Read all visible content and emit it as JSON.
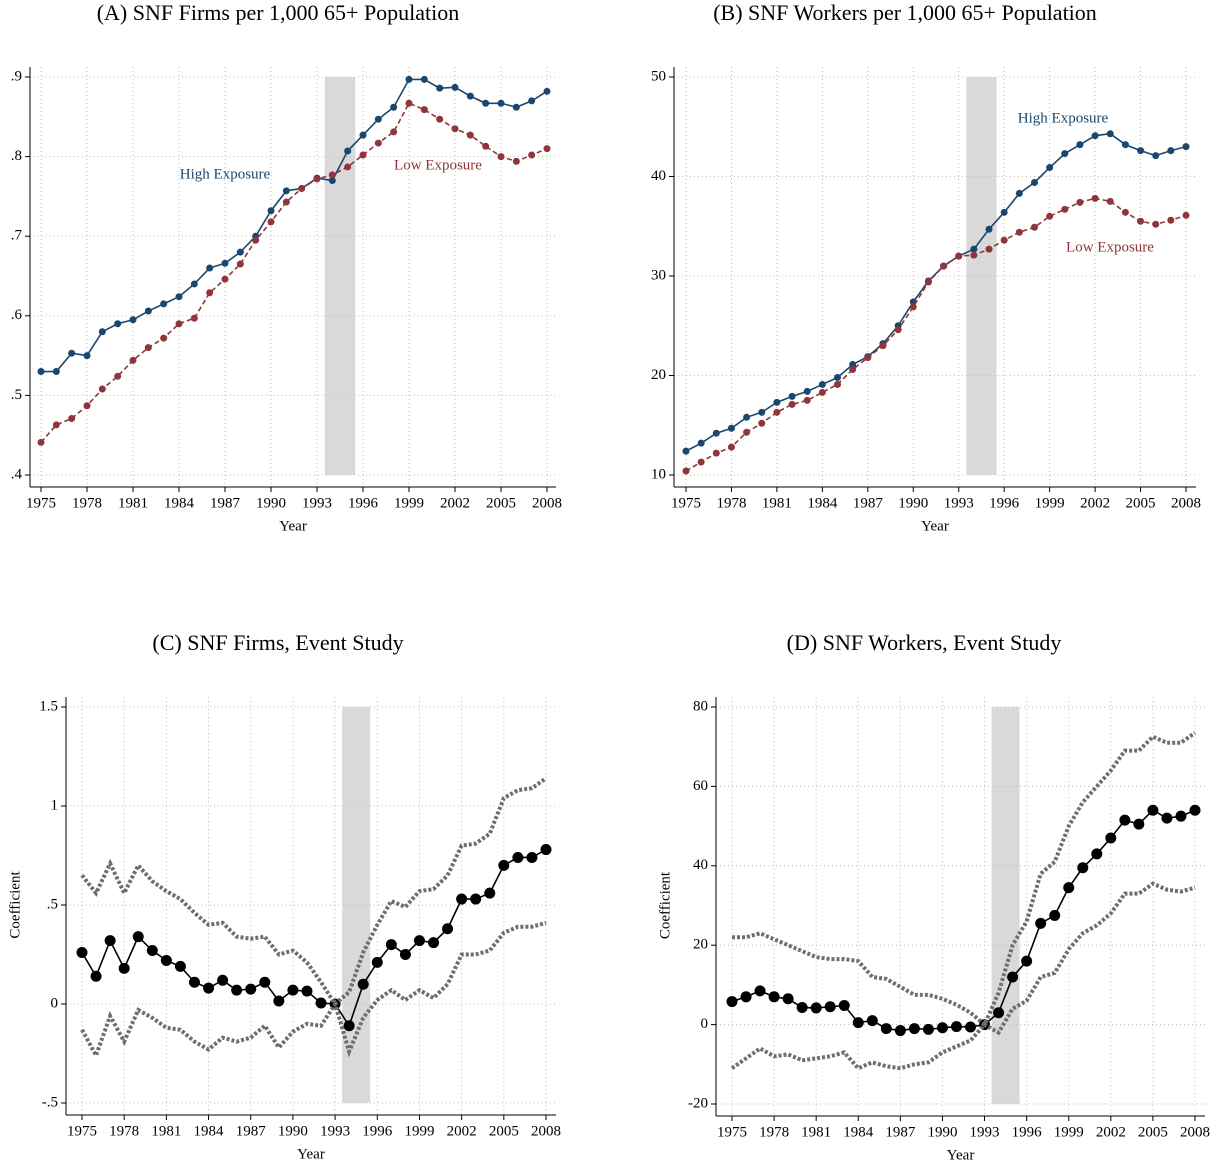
{
  "chart_data": [
    {
      "type": "line",
      "title": "(A)  SNF Firms per 1,000 65+ Population",
      "x_label": "Year",
      "x": [
        1975,
        1976,
        1977,
        1978,
        1979,
        1980,
        1981,
        1982,
        1983,
        1984,
        1985,
        1986,
        1987,
        1988,
        1989,
        1990,
        1991,
        1992,
        1993,
        1994,
        1995,
        1996,
        1997,
        1998,
        1999,
        2000,
        2001,
        2002,
        2003,
        2004,
        2005,
        2006,
        2007,
        2008
      ],
      "series": [
        {
          "name": "High Exposure",
          "color": "#1a476f",
          "dash": false,
          "marker": true,
          "values": [
            0.53,
            0.53,
            0.553,
            0.55,
            0.58,
            0.59,
            0.595,
            0.606,
            0.615,
            0.624,
            0.64,
            0.66,
            0.666,
            0.68,
            0.7,
            0.732,
            0.757,
            0.76,
            0.773,
            0.77,
            0.807,
            0.827,
            0.847,
            0.862,
            0.897,
            0.897,
            0.886,
            0.887,
            0.876,
            0.867,
            0.867,
            0.862,
            0.87,
            0.882
          ]
        },
        {
          "name": "Low Exposure",
          "color": "#90353b",
          "dash": true,
          "marker": true,
          "values": [
            0.441,
            0.463,
            0.471,
            0.487,
            0.508,
            0.524,
            0.544,
            0.56,
            0.572,
            0.59,
            0.597,
            0.629,
            0.646,
            0.665,
            0.695,
            0.718,
            0.743,
            0.76,
            0.772,
            0.777,
            0.787,
            0.802,
            0.817,
            0.831,
            0.867,
            0.859,
            0.847,
            0.835,
            0.827,
            0.813,
            0.8,
            0.794,
            0.802,
            0.81
          ]
        }
      ],
      "xlim": [
        1975,
        2008
      ],
      "xticks": [
        1975,
        1978,
        1981,
        1984,
        1987,
        1990,
        1993,
        1996,
        1999,
        2002,
        2005,
        2008
      ],
      "ylim": [
        0.4,
        0.9
      ],
      "yticks": [
        {
          "value": 0.4,
          "label": ".4"
        },
        {
          "value": 0.5,
          "label": ".5"
        },
        {
          "value": 0.6,
          "label": ".6"
        },
        {
          "value": 0.7,
          "label": ".7"
        },
        {
          "value": 0.8,
          "label": ".8"
        },
        {
          "value": 0.9,
          "label": ".9"
        }
      ],
      "shade": [
        1993.5,
        1995.5
      ],
      "shade_color": "#d9d9d9",
      "grid": true
    },
    {
      "type": "line",
      "title": "(B)  SNF Workers per 1,000 65+ Population",
      "x_label": "Year",
      "x": [
        1975,
        1976,
        1977,
        1978,
        1979,
        1980,
        1981,
        1982,
        1983,
        1984,
        1985,
        1986,
        1987,
        1988,
        1989,
        1990,
        1991,
        1992,
        1993,
        1994,
        1995,
        1996,
        1997,
        1998,
        1999,
        2000,
        2001,
        2002,
        2003,
        2004,
        2005,
        2006,
        2007,
        2008
      ],
      "series": [
        {
          "name": "High Exposure",
          "color": "#1a476f",
          "dash": false,
          "marker": true,
          "values": [
            12.4,
            13.2,
            14.2,
            14.7,
            15.8,
            16.3,
            17.3,
            17.9,
            18.4,
            19.1,
            19.8,
            21.1,
            21.9,
            23.2,
            25.0,
            27.4,
            29.5,
            31.0,
            32.0,
            32.7,
            34.7,
            36.4,
            38.3,
            39.4,
            40.9,
            42.3,
            43.2,
            44.1,
            44.3,
            43.2,
            42.6,
            42.1,
            42.6,
            43.0
          ]
        },
        {
          "name": "Low Exposure",
          "color": "#90353b",
          "dash": true,
          "marker": true,
          "values": [
            10.4,
            11.3,
            12.2,
            12.8,
            14.3,
            15.2,
            16.3,
            17.1,
            17.5,
            18.3,
            19.1,
            20.6,
            21.8,
            23.0,
            24.6,
            26.9,
            29.4,
            31.0,
            32.0,
            32.1,
            32.7,
            33.6,
            34.4,
            34.9,
            36.0,
            36.7,
            37.4,
            37.8,
            37.5,
            36.4,
            35.5,
            35.2,
            35.6,
            36.1
          ]
        }
      ],
      "xlim": [
        1975,
        2008
      ],
      "xticks": [
        1975,
        1978,
        1981,
        1984,
        1987,
        1990,
        1993,
        1996,
        1999,
        2002,
        2005,
        2008
      ],
      "ylim": [
        10,
        50
      ],
      "yticks": [
        10,
        20,
        30,
        40,
        50
      ],
      "shade": [
        1993.5,
        1995.5
      ],
      "shade_color": "#d9d9d9",
      "grid": true
    },
    {
      "type": "line",
      "title": "(C)  SNF Firms, Event Study",
      "x_label": "Year",
      "y_label": "Coefficient",
      "x": [
        1975,
        1976,
        1977,
        1978,
        1979,
        1980,
        1981,
        1982,
        1983,
        1984,
        1985,
        1986,
        1987,
        1988,
        1989,
        1990,
        1991,
        1992,
        1993,
        1994,
        1995,
        1996,
        1997,
        1998,
        1999,
        2000,
        2001,
        2002,
        2003,
        2004,
        2005,
        2006,
        2007,
        2008
      ],
      "series": [
        {
          "color": "#000000",
          "dash": false,
          "marker": true,
          "values": [
            0.26,
            0.14,
            0.32,
            0.18,
            0.34,
            0.27,
            0.22,
            0.19,
            0.11,
            0.08,
            0.12,
            0.07,
            0.075,
            0.11,
            0.015,
            0.07,
            0.065,
            0.005,
            0,
            -0.11,
            0.1,
            0.21,
            0.3,
            0.25,
            0.32,
            0.31,
            0.38,
            0.53,
            0.53,
            0.56,
            0.7,
            0.74,
            0.74,
            0.78
          ]
        },
        {
          "color": "#6e6e6e",
          "dash": true,
          "marker": false,
          "values": [
            0.65,
            0.56,
            0.71,
            0.56,
            0.7,
            0.62,
            0.57,
            0.53,
            0.46,
            0.4,
            0.41,
            0.34,
            0.33,
            0.34,
            0.25,
            0.27,
            0.21,
            0.11,
            0,
            0.06,
            0.26,
            0.4,
            0.52,
            0.49,
            0.57,
            0.58,
            0.65,
            0.8,
            0.81,
            0.86,
            1.04,
            1.08,
            1.09,
            1.14
          ]
        },
        {
          "color": "#6e6e6e",
          "dash": true,
          "marker": false,
          "values": [
            -0.13,
            -0.26,
            -0.06,
            -0.19,
            -0.03,
            -0.07,
            -0.12,
            -0.13,
            -0.19,
            -0.23,
            -0.17,
            -0.19,
            -0.17,
            -0.11,
            -0.22,
            -0.14,
            -0.1,
            -0.11,
            0,
            -0.24,
            -0.07,
            0.02,
            0.07,
            0.02,
            0.07,
            0.03,
            0.1,
            0.25,
            0.25,
            0.27,
            0.36,
            0.39,
            0.39,
            0.41
          ]
        }
      ],
      "xlim": [
        1975,
        2008
      ],
      "xticks": [
        1975,
        1978,
        1981,
        1984,
        1987,
        1990,
        1993,
        1996,
        1999,
        2002,
        2005,
        2008
      ],
      "ylim": [
        -0.5,
        1.5
      ],
      "yticks": [
        {
          "value": -0.5,
          "label": "-.5"
        },
        0,
        {
          "value": 0.5,
          "label": ".5"
        },
        1,
        1.5
      ],
      "shade": [
        1993.5,
        1995.5
      ],
      "shade_color": "#d9d9d9",
      "grid": true
    },
    {
      "type": "line",
      "title": "(D)  SNF Workers, Event Study",
      "x_label": "Year",
      "y_label": "Coefficient",
      "x": [
        1975,
        1976,
        1977,
        1978,
        1979,
        1980,
        1981,
        1982,
        1983,
        1984,
        1985,
        1986,
        1987,
        1988,
        1989,
        1990,
        1991,
        1992,
        1993,
        1994,
        1995,
        1996,
        1997,
        1998,
        1999,
        2000,
        2001,
        2002,
        2003,
        2004,
        2005,
        2006,
        2007,
        2008
      ],
      "series": [
        {
          "color": "#000000",
          "dash": false,
          "marker": true,
          "values": [
            5.8,
            7.0,
            8.5,
            7.0,
            6.5,
            4.3,
            4.2,
            4.5,
            4.8,
            0.5,
            1.0,
            -1.0,
            -1.5,
            -1.0,
            -1.2,
            -0.8,
            -0.5,
            -0.6,
            0,
            3.0,
            12,
            16,
            25.5,
            27.5,
            34.5,
            39.5,
            43,
            47,
            51.5,
            50.5,
            54,
            52,
            52.5,
            54
          ]
        },
        {
          "color": "#6e6e6e",
          "dash": true,
          "marker": false,
          "values": [
            22,
            22,
            23,
            21.5,
            20,
            18.5,
            17,
            16.5,
            16.5,
            16,
            12,
            11.5,
            9.5,
            7.5,
            7.5,
            6.5,
            5,
            3,
            0,
            8,
            20,
            26,
            38,
            41,
            50,
            56,
            60,
            64,
            69,
            69,
            72.5,
            71,
            71,
            73.5
          ]
        },
        {
          "color": "#6e6e6e",
          "dash": true,
          "marker": false,
          "values": [
            -11,
            -8.5,
            -6,
            -8,
            -7.5,
            -9,
            -8.5,
            -8,
            -7,
            -11,
            -9.5,
            -10.5,
            -11,
            -10,
            -9.5,
            -7,
            -5.5,
            -4,
            0,
            -2,
            4,
            6,
            12,
            13,
            19,
            23,
            25,
            28,
            33,
            33,
            35.5,
            34,
            33.5,
            34.5
          ]
        }
      ],
      "xlim": [
        1975,
        2008
      ],
      "xticks": [
        1975,
        1978,
        1981,
        1984,
        1987,
        1990,
        1993,
        1996,
        1999,
        2002,
        2005,
        2008
      ],
      "ylim": [
        -20,
        80
      ],
      "yticks": [
        -20,
        0,
        20,
        40,
        60,
        80
      ],
      "shade": [
        1993.5,
        1995.5
      ],
      "shade_color": "#d9d9d9",
      "grid": true
    }
  ]
}
